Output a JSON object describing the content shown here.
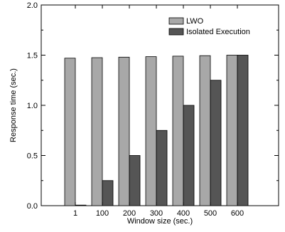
{
  "chart_data": {
    "type": "bar",
    "categories": [
      "1",
      "100",
      "200",
      "300",
      "400",
      "500",
      "600"
    ],
    "series": [
      {
        "name": "LWO",
        "values": [
          1.47,
          1.475,
          1.48,
          1.485,
          1.49,
          1.495,
          1.5
        ],
        "color": "#a8a8a8"
      },
      {
        "name": "Isolated Execution",
        "values": [
          0.005,
          0.25,
          0.5,
          0.75,
          1.0,
          1.25,
          1.5
        ],
        "color": "#555555"
      }
    ],
    "xlabel": "Window size (sec.)",
    "ylabel": "Response time (sec.)",
    "ylim": [
      0,
      2
    ],
    "yticks": [
      "0.0",
      "0.5",
      "1.0",
      "1.5",
      "2.0"
    ],
    "legend_position": "top-right",
    "grid": false
  }
}
